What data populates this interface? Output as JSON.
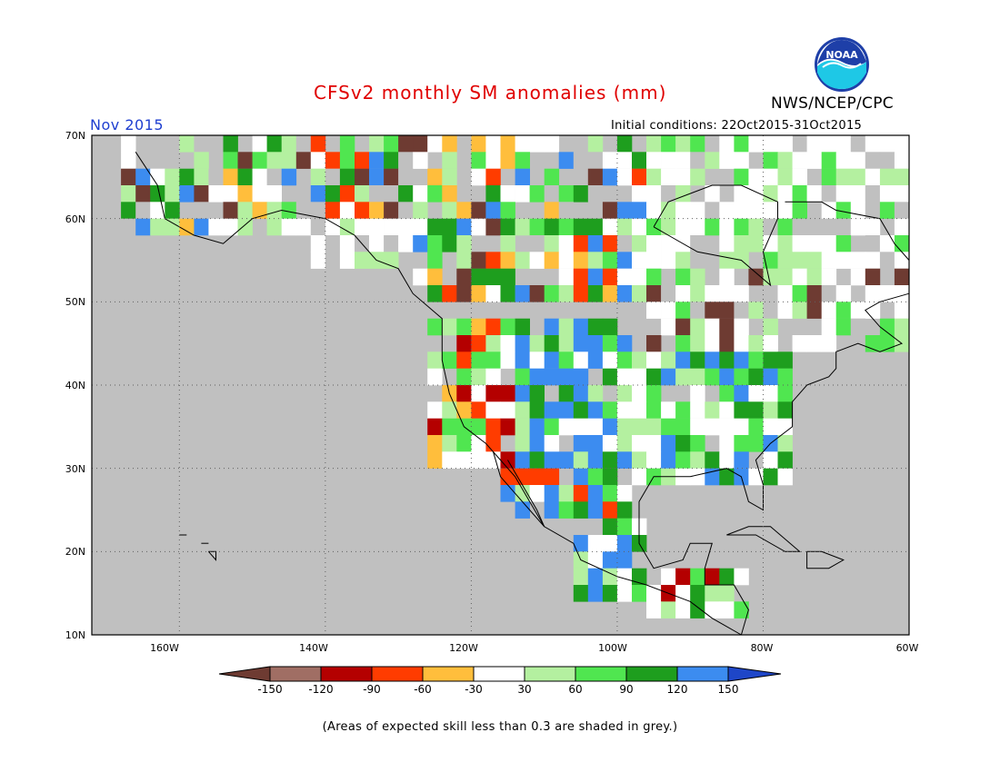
{
  "title": "CFSv2 monthly SM anomalies (mm)",
  "period": "Nov 2015",
  "initial_conditions": "Initial conditions: 22Oct2015-31Oct2015",
  "agency": "NWS/NCEP/CPC",
  "logo_text": "NOAA",
  "footnote": "(Areas of expected skill less than 0.3 are shaded in grey.)",
  "map": {
    "lon_range": [
      -172,
      -60
    ],
    "lat_range": [
      10,
      70
    ],
    "lat_labels": [
      "70N",
      "60N",
      "50N",
      "40N",
      "30N",
      "20N",
      "10N"
    ],
    "lon_labels": [
      "160W",
      "140W",
      "120W",
      "100W",
      "80W",
      "60W"
    ],
    "background_color": "#c0c0c0",
    "coast_color": "#000000",
    "grid_style": "dotted"
  },
  "legend": {
    "labels": [
      "-150",
      "-120",
      "-90",
      "-60",
      "-30",
      "30",
      "60",
      "90",
      "120",
      "150"
    ],
    "colors": [
      "#6e3b32",
      "#a06e64",
      "#b40000",
      "#ff3c00",
      "#ffbe3c",
      "#ffffff",
      "#b4f0a0",
      "#50e650",
      "#1e9e1e",
      "#3c8cf0",
      "#1e46c8"
    ]
  },
  "colors": {
    "grey": "#c0c0c0",
    "white": "#ffffff",
    "light_green": "#b4f0a0",
    "green": "#50e650",
    "dark_green": "#1e9e1e",
    "blue": "#3c8cf0",
    "brown": "#6e3b32",
    "light_brown": "#a06e64",
    "dark_red": "#b40000",
    "red": "#ff3c00",
    "orange": "#ffbe3c",
    "title_red": "#e00000",
    "period_blue": "#1f3fd0"
  }
}
